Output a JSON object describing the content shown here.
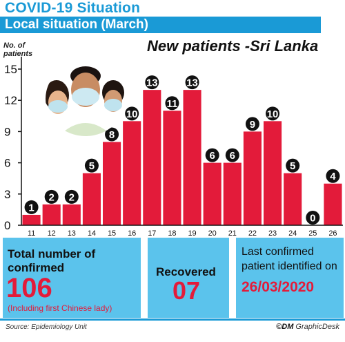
{
  "header": {
    "title": "COVID-19  Situation",
    "subtitle": "Local situation (March)"
  },
  "chart_data": {
    "type": "bar",
    "title": "New patients -Sri Lanka",
    "ylabel": "No. of patients",
    "xlabel": "",
    "categories": [
      "11",
      "12",
      "13",
      "14",
      "15",
      "16",
      "17",
      "18",
      "19",
      "20",
      "21",
      "22",
      "23",
      "24",
      "25",
      "26"
    ],
    "values": [
      1,
      2,
      2,
      5,
      8,
      10,
      13,
      11,
      13,
      6,
      6,
      9,
      10,
      5,
      0,
      4
    ],
    "yticks": [
      "0",
      "3",
      "6",
      "9",
      "12",
      "15"
    ],
    "ylim": [
      0,
      15
    ],
    "colors": {
      "bar": "#e31b3a",
      "axis": "#111111",
      "label_bubble": "#111111"
    }
  },
  "panels": {
    "total": {
      "label_line1": "Total number of",
      "label_line2": "confirmed",
      "value": "106",
      "note": "(Including first Chinese lady)"
    },
    "recovered": {
      "label": "Recovered",
      "value": "07"
    },
    "last": {
      "label_line1": "Last confirmed",
      "label_line2": "patient identified on",
      "value": "26/03/2020"
    }
  },
  "footer": {
    "source": "Source: Epidemiology Unit",
    "credit_brand": "©DM",
    "credit_text": " GraphicDesk"
  },
  "colors": {
    "accent": "#1a9ad6",
    "panel": "#5bc3ec",
    "highlight": "#e31b3a"
  }
}
